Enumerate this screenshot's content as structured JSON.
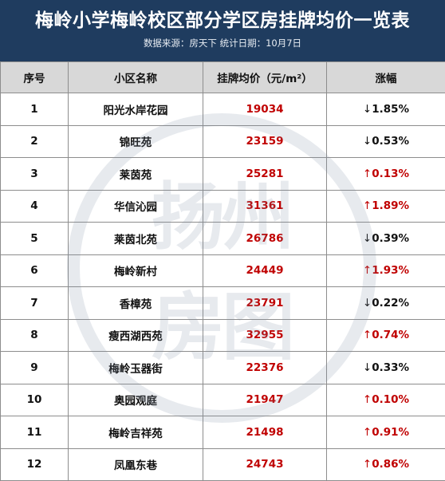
{
  "header": {
    "title": "梅岭小学梅岭校区部分学区房挂牌均价一览表",
    "subtitle": "数据来源：房天下  统计日期：10月7日"
  },
  "table": {
    "columns": [
      "序号",
      "小区名称",
      "挂牌均价（元/m²）",
      "涨幅"
    ],
    "rows": [
      {
        "idx": "1",
        "name": "阳光水岸花园",
        "price": "19034",
        "arrow": "↓",
        "change": "1.85%",
        "dir": "down"
      },
      {
        "idx": "2",
        "name": "锦旺苑",
        "price": "23159",
        "arrow": "↓",
        "change": "0.53%",
        "dir": "down"
      },
      {
        "idx": "3",
        "name": "莱茵苑",
        "price": "25281",
        "arrow": "↑",
        "change": "0.13%",
        "dir": "up"
      },
      {
        "idx": "4",
        "name": "华信沁园",
        "price": "31361",
        "arrow": "↑",
        "change": "1.89%",
        "dir": "up"
      },
      {
        "idx": "5",
        "name": "莱茵北苑",
        "price": "26786",
        "arrow": "↓",
        "change": "0.39%",
        "dir": "down"
      },
      {
        "idx": "6",
        "name": "梅岭新村",
        "price": "24449",
        "arrow": "↑",
        "change": "1.93%",
        "dir": "up"
      },
      {
        "idx": "7",
        "name": "香樟苑",
        "price": "23791",
        "arrow": "↓",
        "change": "0.22%",
        "dir": "down"
      },
      {
        "idx": "8",
        "name": "瘦西湖西苑",
        "price": "32955",
        "arrow": "↑",
        "change": "0.74%",
        "dir": "up"
      },
      {
        "idx": "9",
        "name": "梅岭玉器街",
        "price": "22376",
        "arrow": "↓",
        "change": "0.33%",
        "dir": "down"
      },
      {
        "idx": "10",
        "name": "奥园观庭",
        "price": "21947",
        "arrow": "↑",
        "change": "0.10%",
        "dir": "up"
      },
      {
        "idx": "11",
        "name": "梅岭吉祥苑",
        "price": "21498",
        "arrow": "↑",
        "change": "0.91%",
        "dir": "up"
      },
      {
        "idx": "12",
        "name": "凤凰东巷",
        "price": "24743",
        "arrow": "↑",
        "change": "0.86%",
        "dir": "up"
      }
    ]
  },
  "watermark": {
    "text": [
      "扬",
      "州",
      "房",
      "图"
    ]
  },
  "colors": {
    "header_bg": "#1f3c5f",
    "price_red": "#c00000",
    "header_row_bg": "#d8d8d8"
  }
}
